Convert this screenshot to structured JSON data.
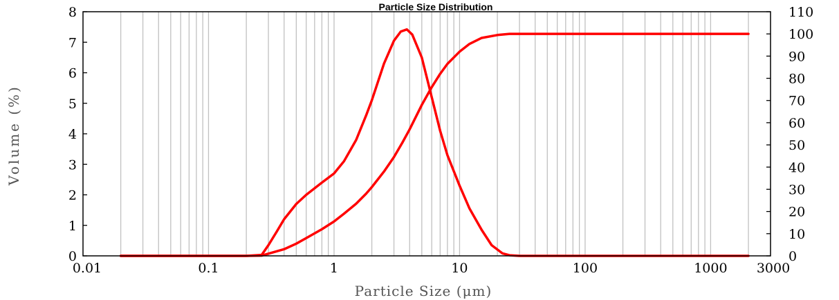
{
  "chart_data": {
    "type": "line",
    "title": "Particle Size Distribution",
    "xlabel": "Particle Size (μm)",
    "ylabel_left": "Volume (%)",
    "ylabel_right": "",
    "x_scale": "log",
    "xlim": [
      0.01,
      3000
    ],
    "ylim_left": [
      0,
      8
    ],
    "ylim_right": [
      0,
      110
    ],
    "grid": true,
    "x_tick_labels": [
      "0.01",
      "0.1",
      "1",
      "10",
      "100",
      "1000",
      "3000"
    ],
    "x_tick_values": [
      0.01,
      0.1,
      1,
      10,
      100,
      1000,
      3000
    ],
    "y_left_ticks": [
      0,
      1,
      2,
      3,
      4,
      5,
      6,
      7,
      8
    ],
    "y_right_ticks": [
      0,
      10,
      20,
      30,
      40,
      50,
      60,
      70,
      80,
      90,
      100,
      110
    ],
    "line_color": "#ff0000",
    "series": [
      {
        "axis": "left",
        "x": [
          0.02,
          0.1,
          0.2,
          0.265,
          0.3,
          0.35,
          0.4,
          0.5,
          0.6,
          0.8,
          1.0,
          1.2,
          1.5,
          1.8,
          2.0,
          2.5,
          3.0,
          3.4,
          3.8,
          4.2,
          5.0,
          6.0,
          7.0,
          8.0,
          10.0,
          12.0,
          15.0,
          18.0,
          22.0,
          25.0,
          30.0,
          100.0,
          1000.0,
          2000.0
        ],
        "y": [
          0,
          0,
          0,
          0.03,
          0.35,
          0.8,
          1.2,
          1.7,
          2.0,
          2.4,
          2.7,
          3.1,
          3.8,
          4.6,
          5.1,
          6.3,
          7.05,
          7.35,
          7.42,
          7.25,
          6.5,
          5.2,
          4.1,
          3.3,
          2.3,
          1.55,
          0.85,
          0.35,
          0.08,
          0.02,
          0,
          0,
          0,
          0
        ]
      },
      {
        "axis": "right",
        "x": [
          0.02,
          0.1,
          0.2,
          0.265,
          0.3,
          0.4,
          0.5,
          0.6,
          0.8,
          1.0,
          1.2,
          1.5,
          1.8,
          2.0,
          2.5,
          3.0,
          3.5,
          4.0,
          5.0,
          6.0,
          7.0,
          8.0,
          10.0,
          12.0,
          15.0,
          20.0,
          25.0,
          30.0,
          100.0,
          1000.0,
          2000.0
        ],
        "y": [
          0,
          0,
          0,
          0.1,
          1,
          3,
          5.5,
          8,
          12,
          15.5,
          19,
          23.5,
          28,
          31,
          38,
          44.5,
          51,
          57,
          68,
          76,
          82,
          86.5,
          92,
          95.5,
          98.2,
          99.5,
          100,
          100,
          100,
          100,
          100
        ]
      }
    ]
  }
}
